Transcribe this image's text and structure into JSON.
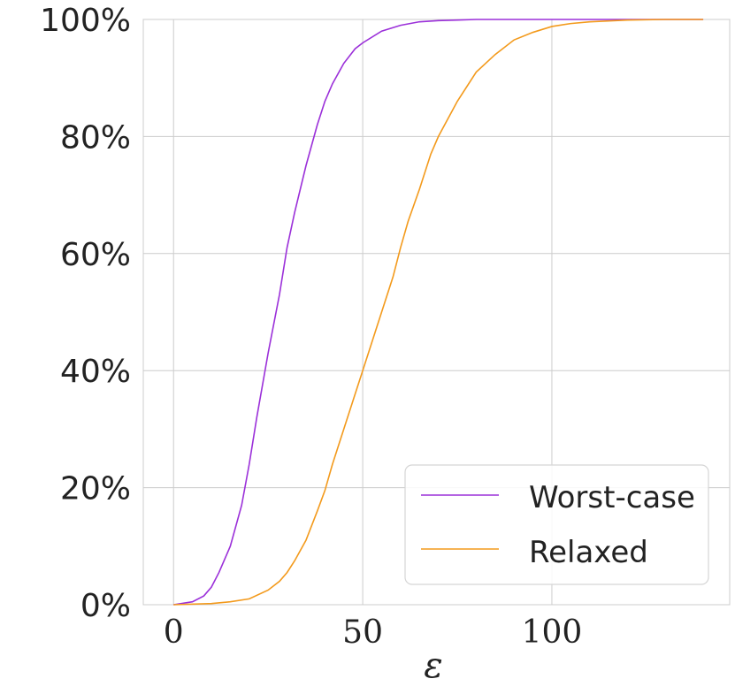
{
  "chart_data": {
    "type": "line",
    "xlabel": "ε",
    "ylabel": "",
    "xlim": [
      -8,
      147
    ],
    "ylim": [
      0,
      100
    ],
    "x_ticks": [
      0,
      50,
      100
    ],
    "x_tick_labels": [
      "0",
      "50",
      "100"
    ],
    "y_ticks": [
      0,
      20,
      40,
      60,
      80,
      100
    ],
    "y_tick_labels": [
      "0%",
      "20%",
      "40%",
      "60%",
      "80%",
      "100%"
    ],
    "grid": true,
    "legend_position": "bottom-right",
    "series": [
      {
        "name": "Worst-case",
        "color": "#9b30d9",
        "x": [
          0,
          5,
          8,
          10,
          12,
          15,
          18,
          20,
          22,
          25,
          28,
          30,
          32,
          35,
          38,
          40,
          42,
          45,
          48,
          50,
          55,
          60,
          65,
          70,
          75,
          80,
          90,
          100,
          110,
          120,
          130,
          140
        ],
        "y": [
          0,
          0.5,
          1.5,
          3,
          5.5,
          10,
          17,
          24,
          32,
          43,
          53,
          61,
          67,
          75,
          82,
          86,
          89,
          92.5,
          95,
          96,
          98,
          99,
          99.6,
          99.8,
          99.9,
          100,
          100,
          100,
          100,
          100,
          100,
          100
        ]
      },
      {
        "name": "Relaxed",
        "color": "#f39a1c",
        "x": [
          0,
          10,
          15,
          20,
          25,
          28,
          30,
          32,
          35,
          38,
          40,
          42,
          45,
          48,
          50,
          52,
          55,
          58,
          60,
          62,
          65,
          68,
          70,
          75,
          80,
          85,
          90,
          95,
          100,
          105,
          110,
          120,
          130,
          140
        ],
        "y": [
          0,
          0.2,
          0.5,
          1,
          2.5,
          4,
          5.5,
          7.5,
          11,
          16,
          19.5,
          24,
          30,
          36,
          40,
          44,
          50,
          56,
          61,
          65.5,
          71,
          77,
          80,
          86,
          91,
          94,
          96.5,
          97.8,
          98.8,
          99.3,
          99.6,
          99.9,
          100,
          100
        ]
      }
    ]
  }
}
